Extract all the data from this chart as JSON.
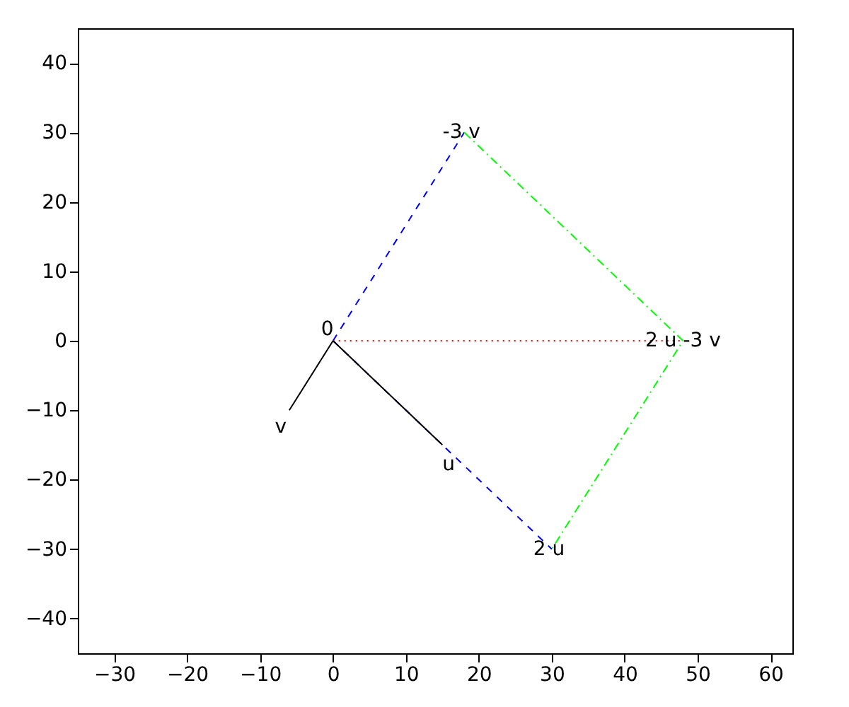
{
  "chart_data": {
    "type": "line",
    "series": [
      {
        "color": "#0000ff",
        "line_style": "dashed",
        "x": [
          0,
          18
        ],
        "values": [
          0,
          30
        ]
      },
      {
        "color": "#0000ff",
        "line_style": "dashed",
        "x": [
          0,
          30
        ],
        "values": [
          0,
          -30
        ]
      },
      {
        "color": "#00ff00",
        "line_style": "dashdot",
        "x": [
          18,
          48,
          30
        ],
        "values": [
          30,
          0,
          -30
        ]
      },
      {
        "color": "#ff0000",
        "line_style": "dotted",
        "x": [
          0,
          48
        ],
        "values": [
          0,
          0
        ]
      },
      {
        "color": "#000000",
        "line_style": "solid",
        "x": [
          0,
          15
        ],
        "values": [
          0,
          -15
        ]
      },
      {
        "color": "#000000",
        "line_style": "solid",
        "x": [
          0,
          -6
        ],
        "values": [
          0,
          -10
        ]
      }
    ],
    "annotations": [
      {
        "text": "0",
        "x": 0,
        "y": 0
      },
      {
        "text": "v",
        "x": -6,
        "y": -10
      },
      {
        "text": "u",
        "x": 15,
        "y": -15
      },
      {
        "text": "-3 v",
        "x": 18,
        "y": 30
      },
      {
        "text": "2 u",
        "x": 30,
        "y": -30
      },
      {
        "text": "2 u -3 v",
        "x": 48,
        "y": 0
      }
    ],
    "xlim": [
      -35,
      63
    ],
    "xticks": [
      -30,
      -20,
      -10,
      0,
      10,
      20,
      30,
      40,
      50,
      60
    ],
    "ylim": [
      -45,
      45
    ],
    "yticks": [
      -40,
      -30,
      -20,
      -10,
      0,
      10,
      20,
      30,
      40
    ],
    "grid": false
  }
}
